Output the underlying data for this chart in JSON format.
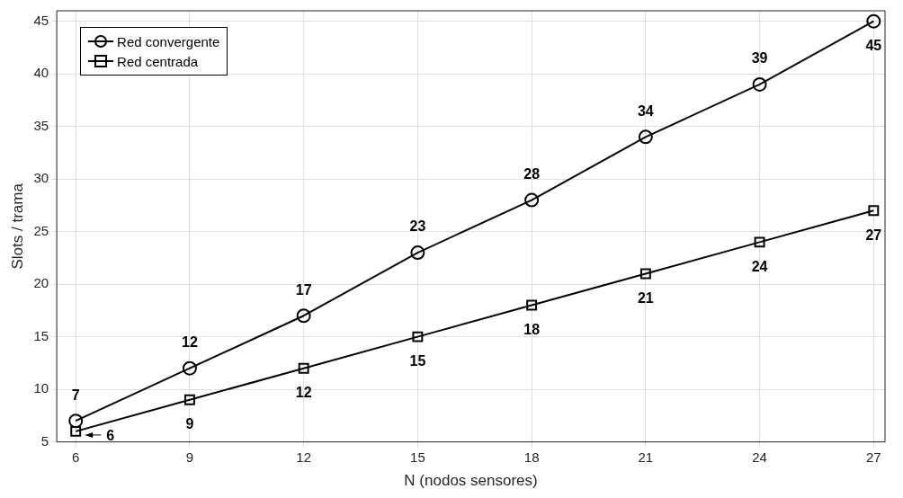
{
  "chart_data": {
    "type": "line",
    "xlabel": "N (nodos sensores)",
    "ylabel": "Slots / trama",
    "x": [
      6,
      9,
      12,
      15,
      18,
      21,
      24,
      27
    ],
    "series": [
      {
        "name": "Red convergente",
        "color": "#000000",
        "marker": "circle",
        "values": [
          7,
          12,
          17,
          23,
          28,
          34,
          39,
          45
        ]
      },
      {
        "name": "Red centrada",
        "color": "#000000",
        "marker": "square",
        "values": [
          6,
          9,
          12,
          15,
          18,
          21,
          24,
          27
        ]
      }
    ],
    "xlim": [
      5.5,
      27.3
    ],
    "xticks": [
      6,
      9,
      12,
      15,
      18,
      21,
      24,
      27
    ],
    "ylim": [
      5,
      46
    ],
    "yticks": [
      5,
      10,
      15,
      20,
      25,
      30,
      35,
      40,
      45
    ],
    "grid": true,
    "legend": "top left",
    "line_style": "solid",
    "data_labels": true
  }
}
